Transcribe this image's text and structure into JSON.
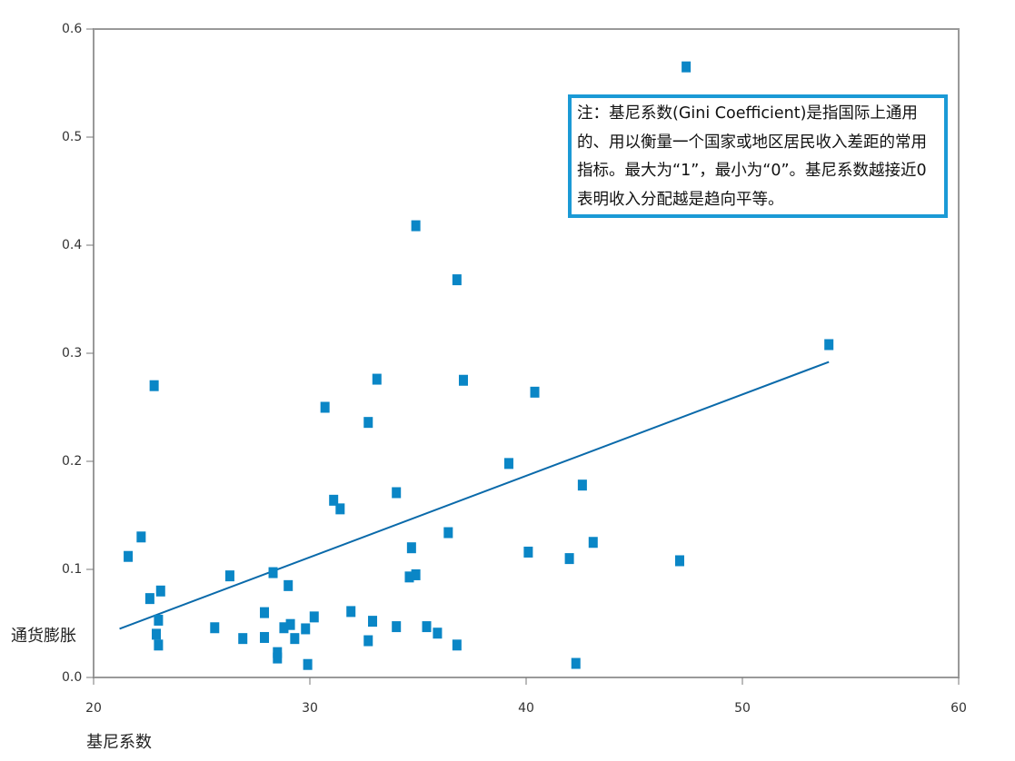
{
  "chart_data": {
    "type": "scatter",
    "xlabel": "基尼系数",
    "ylabel": "通货膨胀",
    "xlim": [
      20,
      60
    ],
    "ylim": [
      0.0,
      0.6
    ],
    "x_ticks": [
      "20",
      "30",
      "40",
      "50",
      "60"
    ],
    "y_ticks": [
      "0.0",
      "0.1",
      "0.2",
      "0.3",
      "0.4",
      "0.5",
      "0.6"
    ],
    "grid": false,
    "note": "注：基尼系数(Gini Coefficient)是指国际上通用的、用以衡量一个国家或地区居民收入差距的常用指标。最大为“1”，最小为“0”。基尼系数越接近0表明收入分配越是趋向平等。",
    "colors": {
      "points": "#0a86c6",
      "trend": "#0a6aaa",
      "frame": "#999999",
      "note_border": "#1b9ad6"
    },
    "points": [
      {
        "x": 21.6,
        "y": 0.112
      },
      {
        "x": 22.2,
        "y": 0.13
      },
      {
        "x": 22.6,
        "y": 0.073
      },
      {
        "x": 22.8,
        "y": 0.27
      },
      {
        "x": 22.9,
        "y": 0.04
      },
      {
        "x": 23.0,
        "y": 0.03
      },
      {
        "x": 23.0,
        "y": 0.053
      },
      {
        "x": 23.1,
        "y": 0.08
      },
      {
        "x": 25.6,
        "y": 0.046
      },
      {
        "x": 26.3,
        "y": 0.094
      },
      {
        "x": 26.9,
        "y": 0.036
      },
      {
        "x": 27.9,
        "y": 0.06
      },
      {
        "x": 27.9,
        "y": 0.037
      },
      {
        "x": 28.3,
        "y": 0.097
      },
      {
        "x": 28.5,
        "y": 0.023
      },
      {
        "x": 28.5,
        "y": 0.018
      },
      {
        "x": 28.8,
        "y": 0.046
      },
      {
        "x": 29.0,
        "y": 0.085
      },
      {
        "x": 29.1,
        "y": 0.049
      },
      {
        "x": 29.3,
        "y": 0.036
      },
      {
        "x": 29.8,
        "y": 0.045
      },
      {
        "x": 29.9,
        "y": 0.012
      },
      {
        "x": 30.2,
        "y": 0.056
      },
      {
        "x": 30.7,
        "y": 0.25
      },
      {
        "x": 31.1,
        "y": 0.164
      },
      {
        "x": 31.4,
        "y": 0.156
      },
      {
        "x": 31.9,
        "y": 0.061
      },
      {
        "x": 32.7,
        "y": 0.236
      },
      {
        "x": 32.7,
        "y": 0.034
      },
      {
        "x": 32.9,
        "y": 0.052
      },
      {
        "x": 33.1,
        "y": 0.276
      },
      {
        "x": 34.0,
        "y": 0.171
      },
      {
        "x": 34.0,
        "y": 0.047
      },
      {
        "x": 34.6,
        "y": 0.093
      },
      {
        "x": 34.7,
        "y": 0.12
      },
      {
        "x": 34.9,
        "y": 0.095
      },
      {
        "x": 34.9,
        "y": 0.418
      },
      {
        "x": 35.4,
        "y": 0.047
      },
      {
        "x": 35.9,
        "y": 0.041
      },
      {
        "x": 36.4,
        "y": 0.134
      },
      {
        "x": 36.8,
        "y": 0.03
      },
      {
        "x": 36.8,
        "y": 0.368
      },
      {
        "x": 37.1,
        "y": 0.275
      },
      {
        "x": 39.2,
        "y": 0.198
      },
      {
        "x": 40.1,
        "y": 0.116
      },
      {
        "x": 40.4,
        "y": 0.264
      },
      {
        "x": 42.0,
        "y": 0.11
      },
      {
        "x": 42.3,
        "y": 0.013
      },
      {
        "x": 42.6,
        "y": 0.178
      },
      {
        "x": 43.1,
        "y": 0.125
      },
      {
        "x": 47.1,
        "y": 0.108
      },
      {
        "x": 47.4,
        "y": 0.565
      },
      {
        "x": 54.0,
        "y": 0.308
      }
    ],
    "trendline": {
      "x": [
        21.2,
        54.0
      ],
      "y": [
        0.045,
        0.292
      ]
    }
  }
}
